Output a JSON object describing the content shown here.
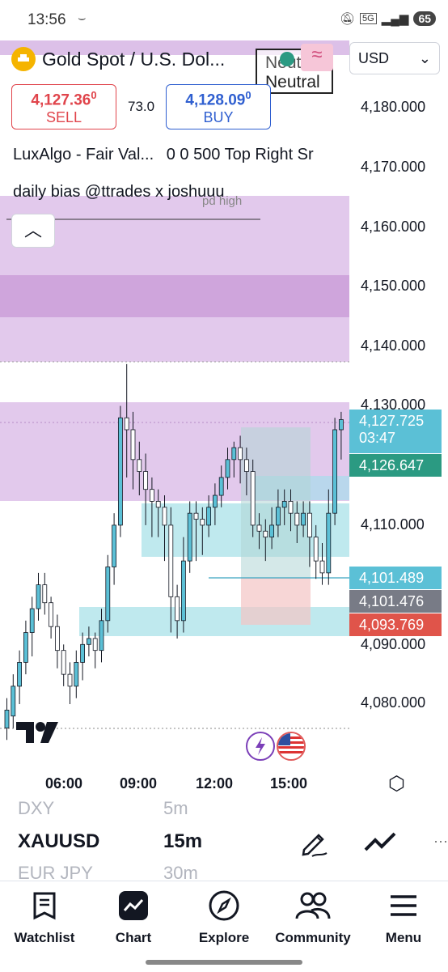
{
  "status_bar": {
    "time": "13:56",
    "signal": "5G",
    "battery": "65"
  },
  "header": {
    "symbol_title": "Gold Spot / U.S. Dol...",
    "currency": "USD",
    "sell": {
      "price": "4,127.36",
      "price_sup": "0",
      "label": "SELL"
    },
    "spread": "73.0",
    "buy": {
      "price": "4,128.09",
      "price_sup": "0",
      "label": "BUY"
    },
    "bias_top": "Neutral",
    "bias_bottom": "Neutral"
  },
  "indicators": {
    "luxalgo": "LuxAlgo - Fair Val...",
    "luxalgo_params": "0 0 500 Top Right Sr",
    "daily_bias": "daily bias @ttrades x joshuuu",
    "pd_high": "pd high"
  },
  "price_axis": [
    "4,180.000",
    "4,170.000",
    "4,160.000",
    "4,150.000",
    "4,140.000",
    "4,130.000",
    "4,110.000",
    "4,090.000",
    "4,080.000"
  ],
  "price_labels": {
    "last": "4,127.725",
    "countdown": "03:47",
    "green": "4,126.647",
    "blue": "4,101.489",
    "gray": "4,101.476",
    "red": "4,093.769"
  },
  "time_axis": [
    "06:00",
    "09:00",
    "12:00",
    "15:00"
  ],
  "colors": {
    "bull": "#5bc0d6",
    "bear": "#ffffff",
    "zone_purple": "#d9b8e6",
    "zone_cyan": "#bfe9ee",
    "green_label": "#2b9a82",
    "red_label": "#e0544a"
  },
  "selector": {
    "prev_symbol": "DXY",
    "prev_interval": "5m",
    "symbol": "XAUUSD",
    "interval": "15m",
    "next_symbol": "EUR JPY",
    "next_interval": "30m"
  },
  "nav": {
    "watchlist": "Watchlist",
    "chart": "Chart",
    "explore": "Explore",
    "community": "Community",
    "menu": "Menu"
  }
}
